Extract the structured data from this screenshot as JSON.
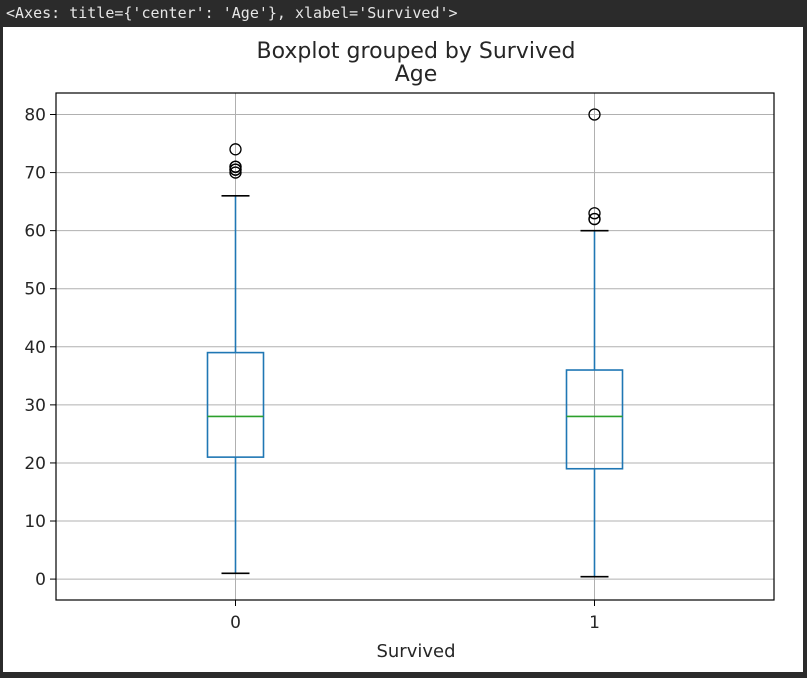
{
  "output_text": "<Axes: title={'center': 'Age'}, xlabel='Survived'>",
  "colors": {
    "box": "#1f77b4",
    "median": "#2ca02c",
    "whisker_cap": "#000000",
    "grid": "#b0b0b0",
    "background": "#2b2b2b"
  },
  "chart_data": {
    "type": "boxplot",
    "title": "Boxplot grouped by Survived",
    "subtitle": "Age",
    "xlabel": "Survived",
    "ylabel": "",
    "categories": [
      "0",
      "1"
    ],
    "ylim": [
      -3.6,
      83.7
    ],
    "yticks": [
      0,
      10,
      20,
      30,
      40,
      50,
      60,
      70,
      80
    ],
    "grid": true,
    "boxes": [
      {
        "category": "0",
        "whisker_low": 1,
        "q1": 21,
        "median": 28,
        "q3": 39,
        "whisker_high": 66,
        "fliers": [
          74,
          71,
          70.5,
          70,
          70.5,
          71
        ]
      },
      {
        "category": "1",
        "whisker_low": 0.42,
        "q1": 19,
        "median": 28,
        "q3": 36,
        "whisker_high": 60,
        "fliers": [
          80,
          63,
          62,
          62
        ]
      }
    ]
  }
}
